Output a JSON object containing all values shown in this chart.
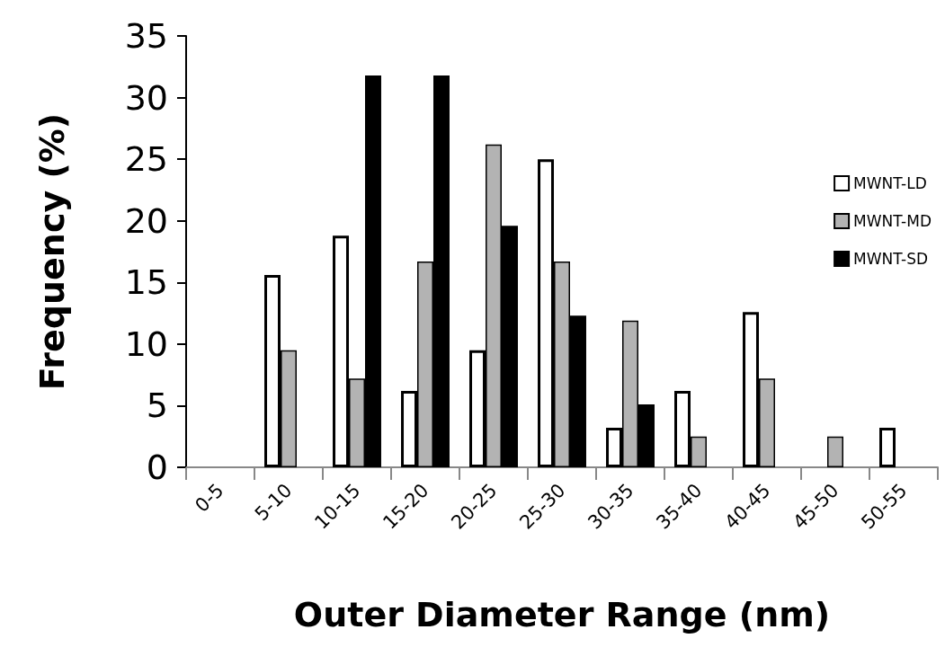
{
  "chart_data": {
    "type": "bar",
    "xlabel": "Outer Diameter Range (nm)",
    "ylabel": "Frequency (%)",
    "categories": [
      "0-5",
      "5-10",
      "10-15",
      "15-20",
      "20-25",
      "25-30",
      "30-35",
      "35-40",
      "40-45",
      "45-50",
      "50-55"
    ],
    "series": [
      {
        "name": "MWNT-LD",
        "color": "#ffffff",
        "values": [
          null,
          15.6,
          18.8,
          6.2,
          9.5,
          25.0,
          3.2,
          6.2,
          12.6,
          null,
          3.2
        ]
      },
      {
        "name": "MWNT-MD",
        "color": "#b3b3b3",
        "values": [
          null,
          9.5,
          7.2,
          16.7,
          26.2,
          16.7,
          11.9,
          2.5,
          7.2,
          2.5,
          null
        ]
      },
      {
        "name": "MWNT-SD",
        "color": "#000000",
        "values": [
          null,
          null,
          31.8,
          31.8,
          19.6,
          12.3,
          5.1,
          null,
          null,
          null,
          null
        ]
      }
    ],
    "ylim": [
      0,
      35
    ],
    "yticks": [
      0,
      5,
      10,
      15,
      20,
      25,
      30,
      35
    ],
    "grid": false,
    "legend": "right"
  }
}
